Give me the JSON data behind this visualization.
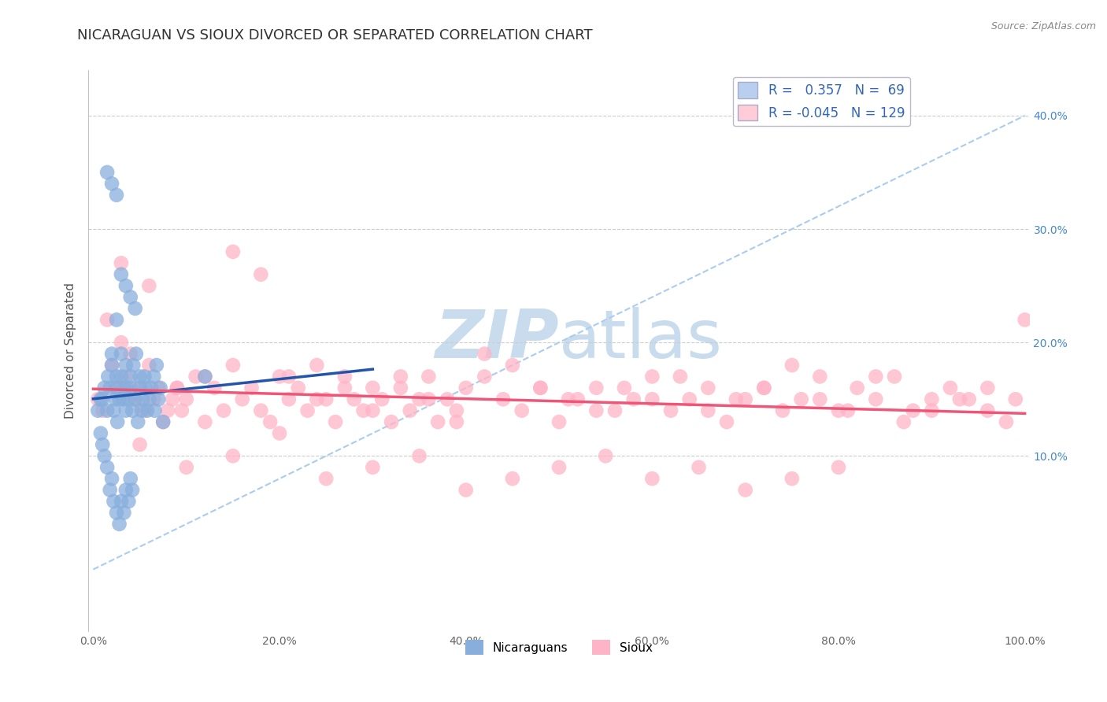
{
  "title": "NICARAGUAN VS SIOUX DIVORCED OR SEPARATED CORRELATION CHART",
  "source": "Source: ZipAtlas.com",
  "ylabel": "Divorced or Separated",
  "xlim": [
    -0.005,
    1.005
  ],
  "ylim": [
    -0.055,
    0.44
  ],
  "ytick_vals": [
    0.1,
    0.2,
    0.3,
    0.4
  ],
  "ytick_labels": [
    "10.0%",
    "20.0%",
    "30.0%",
    "40.0%"
  ],
  "xtick_vals": [
    0.0,
    0.2,
    0.4,
    0.6,
    0.8,
    1.0
  ],
  "xtick_labels": [
    "0.0%",
    "20.0%",
    "40.0%",
    "60.0%",
    "80.0%",
    "100.0%"
  ],
  "r_nicaraguan": 0.357,
  "n_nicaraguan": 69,
  "r_sioux": -0.045,
  "n_sioux": 129,
  "blue_color": "#88AEDD",
  "pink_color": "#FFB3C6",
  "legend_blue_fill": "#B8D0EE",
  "legend_pink_fill": "#FFCCD8",
  "blue_line_color": "#2255AA",
  "pink_line_color": "#EE5577",
  "dashed_line_color": "#AACCEE",
  "watermark_color": "#C8DCEE",
  "background_color": "#FFFFFF",
  "title_fontsize": 13,
  "axis_label_fontsize": 11,
  "tick_fontsize": 10,
  "legend_fontsize": 12,
  "nicaraguan_x": [
    0.005,
    0.008,
    0.01,
    0.012,
    0.015,
    0.016,
    0.018,
    0.02,
    0.02,
    0.022,
    0.024,
    0.025,
    0.025,
    0.026,
    0.028,
    0.03,
    0.03,
    0.032,
    0.033,
    0.035,
    0.035,
    0.036,
    0.038,
    0.04,
    0.04,
    0.042,
    0.043,
    0.045,
    0.046,
    0.048,
    0.05,
    0.05,
    0.052,
    0.053,
    0.055,
    0.056,
    0.058,
    0.06,
    0.062,
    0.065,
    0.066,
    0.068,
    0.07,
    0.072,
    0.075,
    0.008,
    0.01,
    0.012,
    0.015,
    0.018,
    0.02,
    0.022,
    0.025,
    0.028,
    0.03,
    0.033,
    0.035,
    0.038,
    0.04,
    0.042,
    0.025,
    0.03,
    0.035,
    0.04,
    0.045,
    0.015,
    0.02,
    0.025,
    0.12
  ],
  "nicaraguan_y": [
    0.14,
    0.15,
    0.15,
    0.16,
    0.14,
    0.17,
    0.16,
    0.18,
    0.19,
    0.14,
    0.15,
    0.17,
    0.16,
    0.13,
    0.15,
    0.19,
    0.17,
    0.15,
    0.16,
    0.18,
    0.14,
    0.16,
    0.15,
    0.17,
    0.16,
    0.14,
    0.18,
    0.15,
    0.19,
    0.13,
    0.16,
    0.17,
    0.14,
    0.15,
    0.17,
    0.16,
    0.14,
    0.15,
    0.16,
    0.17,
    0.14,
    0.18,
    0.15,
    0.16,
    0.13,
    0.12,
    0.11,
    0.1,
    0.09,
    0.07,
    0.08,
    0.06,
    0.05,
    0.04,
    0.06,
    0.05,
    0.07,
    0.06,
    0.08,
    0.07,
    0.22,
    0.26,
    0.25,
    0.24,
    0.23,
    0.35,
    0.34,
    0.33,
    0.17
  ],
  "sioux_x": [
    0.005,
    0.01,
    0.015,
    0.02,
    0.025,
    0.03,
    0.035,
    0.04,
    0.045,
    0.05,
    0.055,
    0.06,
    0.065,
    0.07,
    0.075,
    0.08,
    0.085,
    0.09,
    0.095,
    0.1,
    0.11,
    0.12,
    0.13,
    0.14,
    0.15,
    0.16,
    0.17,
    0.18,
    0.19,
    0.2,
    0.21,
    0.22,
    0.23,
    0.24,
    0.25,
    0.26,
    0.27,
    0.28,
    0.29,
    0.3,
    0.31,
    0.32,
    0.33,
    0.34,
    0.35,
    0.36,
    0.37,
    0.38,
    0.39,
    0.4,
    0.42,
    0.44,
    0.46,
    0.48,
    0.5,
    0.52,
    0.54,
    0.56,
    0.58,
    0.6,
    0.62,
    0.64,
    0.66,
    0.68,
    0.7,
    0.72,
    0.74,
    0.76,
    0.78,
    0.8,
    0.82,
    0.84,
    0.86,
    0.88,
    0.9,
    0.92,
    0.94,
    0.96,
    0.98,
    1.0,
    0.03,
    0.06,
    0.09,
    0.12,
    0.15,
    0.18,
    0.21,
    0.24,
    0.27,
    0.3,
    0.33,
    0.36,
    0.39,
    0.42,
    0.45,
    0.48,
    0.51,
    0.54,
    0.57,
    0.6,
    0.63,
    0.66,
    0.69,
    0.72,
    0.75,
    0.78,
    0.81,
    0.84,
    0.87,
    0.9,
    0.93,
    0.96,
    0.99,
    0.05,
    0.1,
    0.15,
    0.2,
    0.25,
    0.3,
    0.35,
    0.4,
    0.45,
    0.5,
    0.55,
    0.6,
    0.65,
    0.7,
    0.75,
    0.8
  ],
  "sioux_y": [
    0.15,
    0.14,
    0.22,
    0.18,
    0.16,
    0.2,
    0.17,
    0.19,
    0.15,
    0.16,
    0.14,
    0.18,
    0.15,
    0.16,
    0.13,
    0.14,
    0.15,
    0.16,
    0.14,
    0.15,
    0.17,
    0.13,
    0.16,
    0.14,
    0.18,
    0.15,
    0.16,
    0.14,
    0.13,
    0.17,
    0.15,
    0.16,
    0.14,
    0.18,
    0.15,
    0.13,
    0.17,
    0.15,
    0.14,
    0.16,
    0.15,
    0.13,
    0.16,
    0.14,
    0.15,
    0.17,
    0.13,
    0.15,
    0.14,
    0.16,
    0.17,
    0.15,
    0.14,
    0.16,
    0.13,
    0.15,
    0.16,
    0.14,
    0.15,
    0.17,
    0.14,
    0.15,
    0.16,
    0.13,
    0.15,
    0.16,
    0.14,
    0.15,
    0.17,
    0.14,
    0.16,
    0.15,
    0.17,
    0.14,
    0.15,
    0.16,
    0.15,
    0.14,
    0.13,
    0.22,
    0.27,
    0.25,
    0.16,
    0.17,
    0.28,
    0.26,
    0.17,
    0.15,
    0.16,
    0.14,
    0.17,
    0.15,
    0.13,
    0.19,
    0.18,
    0.16,
    0.15,
    0.14,
    0.16,
    0.15,
    0.17,
    0.14,
    0.15,
    0.16,
    0.18,
    0.15,
    0.14,
    0.17,
    0.13,
    0.14,
    0.15,
    0.16,
    0.15,
    0.11,
    0.09,
    0.1,
    0.12,
    0.08,
    0.09,
    0.1,
    0.07,
    0.08,
    0.09,
    0.1,
    0.08,
    0.09,
    0.07,
    0.08,
    0.09
  ]
}
